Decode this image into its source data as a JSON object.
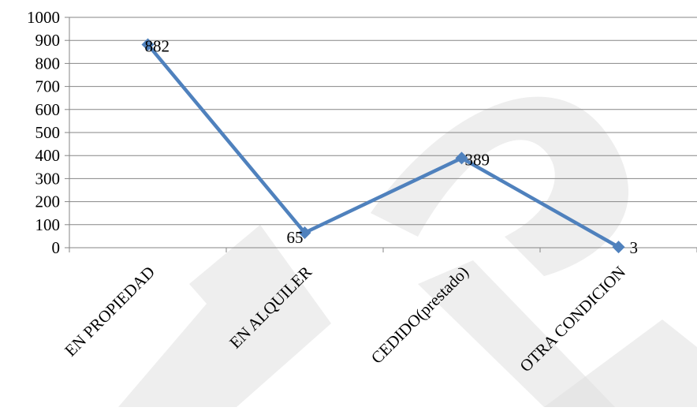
{
  "colors": {
    "series_line": "#4f81bd",
    "marker": "#4f81bd",
    "grid": "#868686",
    "axis": "#868686",
    "watermark": "#e0e0e0"
  },
  "chart_data": {
    "type": "line",
    "categories": [
      "EN PROPIEDAD",
      "EN ALQUILER",
      "CEDIDO(prestado)",
      "OTRA CONDICION"
    ],
    "series": [
      {
        "values": [
          882,
          65,
          389,
          3
        ]
      }
    ],
    "data_labels": [
      "882",
      "65",
      "389",
      "3"
    ],
    "y_ticks": [
      "0",
      "100",
      "200",
      "300",
      "400",
      "500",
      "600",
      "700",
      "800",
      "900",
      "1000"
    ],
    "ylim": [
      0,
      1000
    ],
    "grid": true,
    "legend": "none",
    "marker": "diamond"
  }
}
